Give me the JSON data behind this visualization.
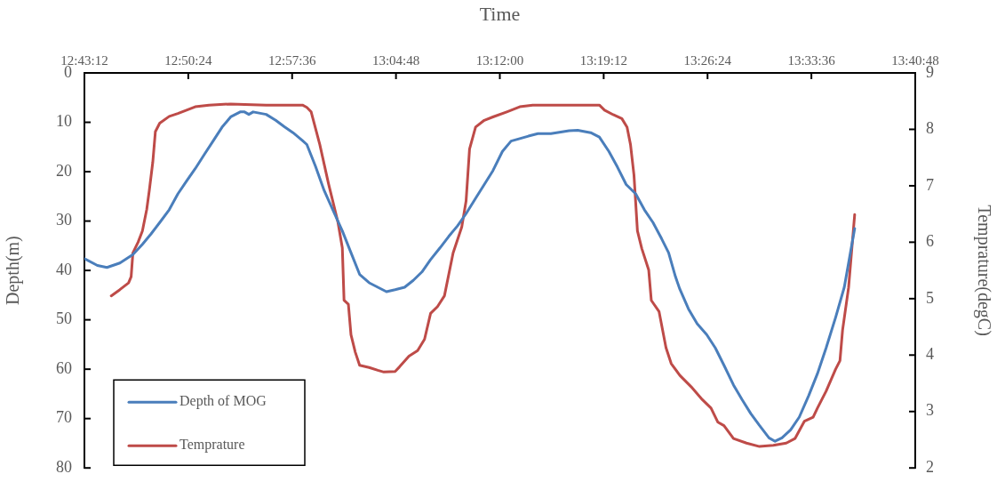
{
  "chart_data": {
    "type": "line",
    "xlabel": "Time",
    "ylabel": "Depth(m)",
    "y2label": "Temprature(degC)",
    "xlim": [
      12.72,
      13.68
    ],
    "xticks": [
      {
        "value": 12.72,
        "label": "12:43:12"
      },
      {
        "value": 12.84,
        "label": "12:50:24"
      },
      {
        "value": 12.96,
        "label": "12:57:36"
      },
      {
        "value": 13.08,
        "label": "13:04:48"
      },
      {
        "value": 13.2,
        "label": "13:12:00"
      },
      {
        "value": 13.32,
        "label": "13:19:12"
      },
      {
        "value": 13.44,
        "label": "13:26:24"
      },
      {
        "value": 13.56,
        "label": "13:33:36"
      },
      {
        "value": 13.68,
        "label": "13:40:48"
      }
    ],
    "ylim": [
      80,
      0
    ],
    "yticks": [
      0,
      10,
      20,
      30,
      40,
      50,
      60,
      70,
      80
    ],
    "y2lim": [
      2,
      9
    ],
    "y2ticks": [
      2,
      3,
      4,
      5,
      6,
      7,
      8,
      9
    ],
    "legend": "bottom left",
    "grid": false,
    "marker": "none",
    "line_style": "solid",
    "series": [
      {
        "name": "Depth of MOG",
        "color": "#4a7ebb",
        "x": [
          12.72,
          12.735,
          12.746,
          12.761,
          12.776,
          12.787,
          12.797,
          12.807,
          12.818,
          12.828,
          12.838,
          12.848,
          12.859,
          12.869,
          12.879,
          12.889,
          12.9,
          12.905,
          12.91,
          12.915,
          12.93,
          12.941,
          12.951,
          12.961,
          12.972,
          12.977,
          12.987,
          12.997,
          13.007,
          13.018,
          13.028,
          13.038,
          13.049,
          13.059,
          13.069,
          13.079,
          13.09,
          13.1,
          13.11,
          13.12,
          13.131,
          13.141,
          13.151,
          13.161,
          13.172,
          13.182,
          13.192,
          13.203,
          13.213,
          13.223,
          13.233,
          13.244,
          13.259,
          13.28,
          13.29,
          13.305,
          13.315,
          13.326,
          13.336,
          13.346,
          13.357,
          13.367,
          13.377,
          13.387,
          13.395,
          13.403,
          13.408,
          13.418,
          13.428,
          13.439,
          13.449,
          13.459,
          13.47,
          13.48,
          13.49,
          13.5,
          13.511,
          13.518,
          13.526,
          13.536,
          13.546,
          13.557,
          13.567,
          13.577,
          13.588,
          13.598,
          13.61
        ],
        "values": [
          37.6,
          39.0,
          39.4,
          38.5,
          36.8,
          34.7,
          32.6,
          30.3,
          27.7,
          24.5,
          21.9,
          19.4,
          16.4,
          13.7,
          11.0,
          8.9,
          7.9,
          7.9,
          8.4,
          7.9,
          8.4,
          9.6,
          10.9,
          12.1,
          13.7,
          14.5,
          18.9,
          23.8,
          27.7,
          32.0,
          36.4,
          40.8,
          42.5,
          43.4,
          44.3,
          43.9,
          43.4,
          42.0,
          40.3,
          37.8,
          35.4,
          33.1,
          31.0,
          28.5,
          25.4,
          22.6,
          19.8,
          15.9,
          13.8,
          13.3,
          12.8,
          12.3,
          12.3,
          11.7,
          11.6,
          12.1,
          13.0,
          15.9,
          19.1,
          22.6,
          24.5,
          27.7,
          30.3,
          33.6,
          36.4,
          41.3,
          43.8,
          47.8,
          50.8,
          53.0,
          55.7,
          59.2,
          63.2,
          66.2,
          69.0,
          71.4,
          73.9,
          74.6,
          73.9,
          72.3,
          69.7,
          65.3,
          60.9,
          55.7,
          49.5,
          43.4,
          31.5
        ]
      },
      {
        "name": "Temprature",
        "color": "#be4b48",
        "axis": "y2",
        "x": [
          12.751,
          12.761,
          12.771,
          12.774,
          12.776,
          12.782,
          12.787,
          12.792,
          12.795,
          12.799,
          12.802,
          12.807,
          12.818,
          12.828,
          12.838,
          12.848,
          12.864,
          12.889,
          12.93,
          12.972,
          12.977,
          12.982,
          12.992,
          13.002,
          13.013,
          13.018,
          13.02,
          13.025,
          13.028,
          13.033,
          13.038,
          13.049,
          13.059,
          13.066,
          13.079,
          13.084,
          13.095,
          13.105,
          13.113,
          13.12,
          13.128,
          13.136,
          13.146,
          13.156,
          13.161,
          13.165,
          13.172,
          13.182,
          13.192,
          13.208,
          13.223,
          13.238,
          13.259,
          13.3,
          13.315,
          13.321,
          13.331,
          13.341,
          13.347,
          13.351,
          13.355,
          13.359,
          13.364,
          13.372,
          13.375,
          13.384,
          13.392,
          13.398,
          13.408,
          13.421,
          13.434,
          13.444,
          13.452,
          13.459,
          13.47,
          13.485,
          13.5,
          13.516,
          13.531,
          13.541,
          13.552,
          13.562,
          13.567,
          13.577,
          13.588,
          13.593,
          13.596,
          13.603,
          13.61
        ],
        "values": [
          5.05,
          5.16,
          5.28,
          5.39,
          5.81,
          6.0,
          6.2,
          6.58,
          6.92,
          7.42,
          7.96,
          8.11,
          8.23,
          8.28,
          8.34,
          8.4,
          8.43,
          8.45,
          8.43,
          8.43,
          8.39,
          8.31,
          7.73,
          7.04,
          6.35,
          5.9,
          4.97,
          4.9,
          4.36,
          4.05,
          3.82,
          3.78,
          3.73,
          3.7,
          3.71,
          3.79,
          3.98,
          4.08,
          4.28,
          4.74,
          4.86,
          5.05,
          5.81,
          6.27,
          6.73,
          7.65,
          8.04,
          8.16,
          8.22,
          8.31,
          8.4,
          8.43,
          8.43,
          8.43,
          8.43,
          8.34,
          8.26,
          8.19,
          8.04,
          7.73,
          7.19,
          6.2,
          5.89,
          5.51,
          4.97,
          4.77,
          4.13,
          3.85,
          3.64,
          3.44,
          3.21,
          3.06,
          2.81,
          2.75,
          2.52,
          2.44,
          2.38,
          2.4,
          2.44,
          2.52,
          2.83,
          2.9,
          3.06,
          3.36,
          3.75,
          3.9,
          4.44,
          5.2,
          6.49
        ]
      }
    ]
  }
}
